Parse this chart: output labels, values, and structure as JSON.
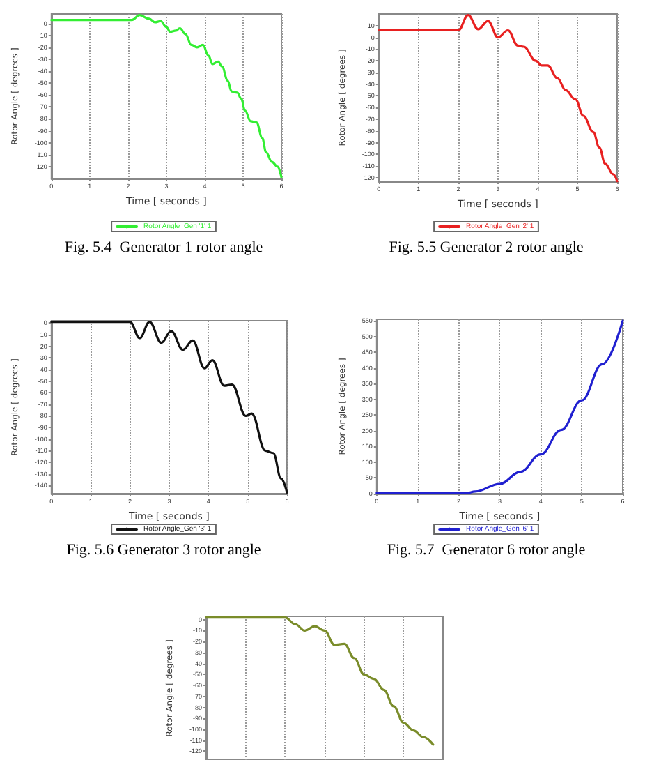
{
  "chart_data": [
    {
      "type": "line",
      "title": "Fig. 5.4  Generator 1 rotor angle",
      "xlabel": "Time [ seconds ]",
      "ylabel": "Rotor Angle [ degrees ]",
      "grid": "x",
      "legend": "bottom",
      "xlim": [
        0,
        6
      ],
      "ylim": [
        -130,
        8
      ],
      "xticks": [
        0,
        1,
        2,
        3,
        4,
        5,
        6
      ],
      "yticks": [
        0,
        -10,
        -20,
        -30,
        -40,
        -50,
        -60,
        -70,
        -80,
        -90,
        -100,
        -110,
        -120
      ],
      "series": [
        {
          "name": "Rotor Angle_Gen '1' 1",
          "color": "#33ee33",
          "x": [
            0,
            2.1,
            2.3,
            2.55,
            2.7,
            2.85,
            3.0,
            3.1,
            3.25,
            3.35,
            3.5,
            3.65,
            3.8,
            3.95,
            4.1,
            4.2,
            4.35,
            4.45,
            4.6,
            4.7,
            4.85,
            4.95,
            5.05,
            5.2,
            5.35,
            5.5,
            5.6,
            5.75,
            5.9,
            6.0
          ],
          "values": [
            3,
            3,
            7,
            4,
            1,
            2,
            -3,
            -7,
            -6,
            -4,
            -9,
            -18,
            -20,
            -18,
            -27,
            -34,
            -32,
            -36,
            -48,
            -57,
            -58,
            -63,
            -73,
            -82,
            -83,
            -96,
            -108,
            -116,
            -120,
            -129
          ]
        }
      ]
    },
    {
      "type": "line",
      "title": "Fig. 5.5 Generator 2 rotor angle",
      "xlabel": "Time [ seconds ]",
      "ylabel": "Rotor Angle [ degrees ]",
      "grid": "x",
      "legend": "bottom",
      "xlim": [
        0,
        6
      ],
      "ylim": [
        -123,
        20
      ],
      "xticks": [
        0,
        1,
        2,
        3,
        4,
        5,
        6
      ],
      "yticks": [
        10,
        0,
        -10,
        -20,
        -30,
        -40,
        -50,
        -60,
        -70,
        -80,
        -90,
        -100,
        -110,
        -120
      ],
      "series": [
        {
          "name": "Rotor Angle_Gen '2' 1",
          "color": "#e82020",
          "x": [
            0,
            2.0,
            2.25,
            2.5,
            2.75,
            3.0,
            3.25,
            3.5,
            3.65,
            3.95,
            4.1,
            4.25,
            4.5,
            4.7,
            4.95,
            5.15,
            5.4,
            5.55,
            5.7,
            5.9,
            6.0
          ],
          "values": [
            6,
            6,
            19,
            7,
            14,
            0,
            6,
            -7,
            -8,
            -20,
            -24,
            -24,
            -35,
            -45,
            -53,
            -67,
            -81,
            -94,
            -108,
            -117,
            -123
          ]
        }
      ]
    },
    {
      "type": "line",
      "title": "Fig. 5.6 Generator 3 rotor angle",
      "xlabel": "Time [ seconds ]",
      "ylabel": "Rotor Angle [ degrees ]",
      "grid": "x",
      "legend": "bottom",
      "xlim": [
        0,
        6
      ],
      "ylim": [
        -147,
        2
      ],
      "xticks": [
        0,
        1,
        2,
        3,
        4,
        5,
        6
      ],
      "yticks": [
        0,
        -10,
        -20,
        -30,
        -40,
        -50,
        -60,
        -70,
        -80,
        -90,
        -100,
        -110,
        -120,
        -130,
        -140
      ],
      "series": [
        {
          "name": "Rotor Angle_Gen '3' 1",
          "color": "#111111",
          "x": [
            0,
            2.0,
            2.25,
            2.5,
            2.8,
            3.05,
            3.35,
            3.6,
            3.9,
            4.1,
            4.4,
            4.6,
            4.95,
            5.1,
            5.45,
            5.65,
            5.85,
            6.0
          ],
          "values": [
            1,
            1,
            -13,
            1,
            -17,
            -7,
            -23,
            -15,
            -39,
            -32,
            -54,
            -53,
            -80,
            -78,
            -110,
            -112,
            -134,
            -146
          ]
        }
      ]
    },
    {
      "type": "line",
      "title": "Fig. 5.7  Generator 6 rotor angle",
      "xlabel": "Time [ seconds ]",
      "ylabel": "Rotor Angle [ degrees ]",
      "grid": "x",
      "legend": "bottom",
      "xlim": [
        0,
        6
      ],
      "ylim": [
        0,
        555
      ],
      "xticks": [
        0,
        1,
        2,
        3,
        4,
        5,
        6
      ],
      "yticks": [
        0,
        50,
        100,
        150,
        200,
        250,
        300,
        350,
        400,
        450,
        500,
        550
      ],
      "series": [
        {
          "name": "Rotor Angle_Gen '6' 1",
          "color": "#2020d0",
          "x": [
            0,
            2.2,
            2.4,
            3.0,
            3.5,
            4.0,
            4.5,
            5.0,
            5.5,
            6.0
          ],
          "values": [
            2,
            2,
            7,
            31,
            69,
            125,
            203,
            297,
            412,
            550
          ]
        }
      ]
    },
    {
      "type": "line",
      "ylabel": "Rotor Angle [ degrees ]",
      "grid": "x",
      "tick_labels": "y",
      "categories": [
        null,
        null,
        null,
        null,
        null,
        null,
        null,
        null,
        null,
        null,
        null,
        null,
        null,
        null,
        null,
        null,
        null,
        null,
        null,
        null,
        null,
        null,
        null,
        null,
        null
      ],
      "ylim": [
        -128,
        3
      ],
      "yticks": [
        0,
        -10,
        -20,
        -30,
        -40,
        -50,
        -60,
        -70,
        -80,
        -90,
        -100,
        -110,
        -120
      ],
      "series": [
        {
          "color": "#7a8c2a",
          "values": [
            2,
            2,
            2,
            2,
            2,
            2,
            2,
            2,
            2,
            -4,
            -10,
            -6,
            -10,
            -23,
            -22,
            -35,
            -50,
            -54,
            -64,
            -79,
            -94,
            -101,
            -107,
            -114,
            null
          ]
        }
      ]
    }
  ]
}
